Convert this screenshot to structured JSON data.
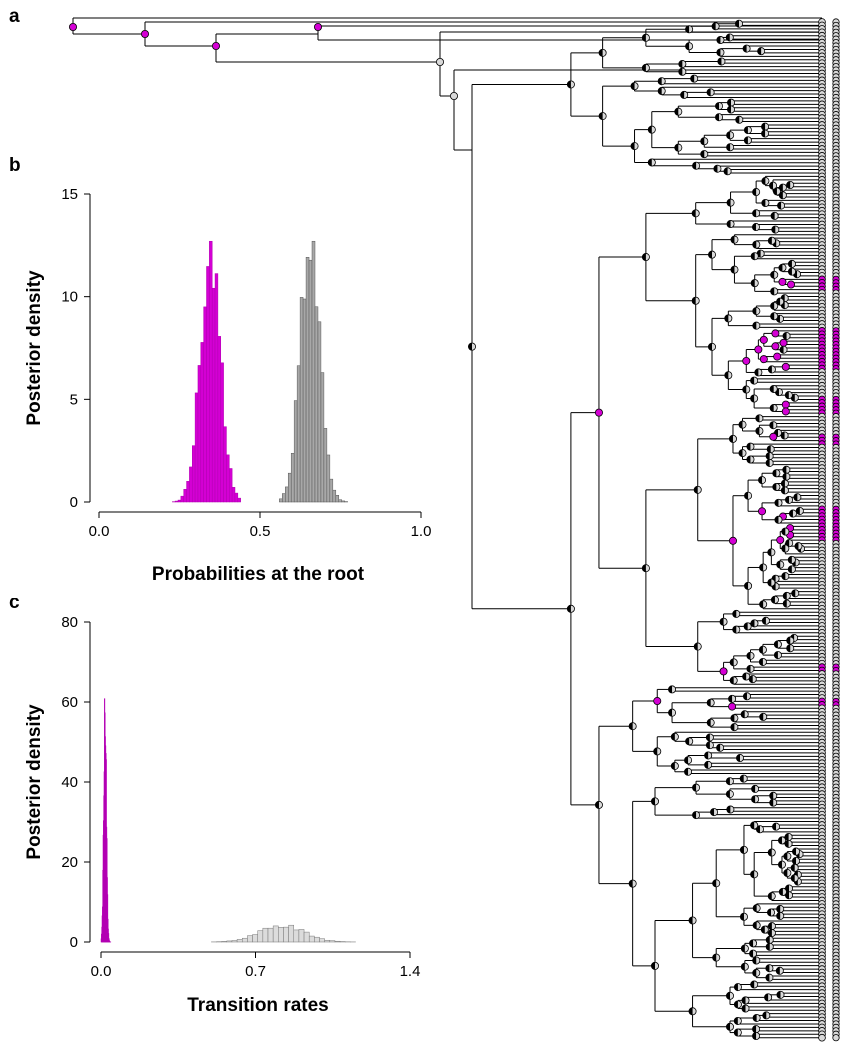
{
  "panel_labels": {
    "a": "a",
    "b": "b",
    "c": "c"
  },
  "colors": {
    "state_a": "#d400d4",
    "state_b": "#a8a8a8",
    "state_b_light": "#dcdcdc",
    "node_fill": "#d9d9d9",
    "branch": "#000000"
  },
  "tree": {
    "type": "phylogeny",
    "node_marker": "pie-chart-circle",
    "note_states": [
      "state_a",
      "state_b"
    ]
  },
  "chart_data": [
    {
      "panel": "b",
      "type": "histogram",
      "xlabel": "Probabilities at the root",
      "ylabel": "Posterior density",
      "xlim": [
        0.0,
        1.0
      ],
      "ylim": [
        0,
        15
      ],
      "xticks": [
        "0.0",
        "0.5",
        "1.0"
      ],
      "yticks": [
        "0",
        "5",
        "10",
        "15"
      ],
      "grid": false,
      "series": [
        {
          "color": "#d400d4",
          "mean": 0.345,
          "sd": 0.031,
          "peak": 12.7,
          "range": [
            0.21,
            0.44
          ]
        },
        {
          "color": "#a8a8a8",
          "mean": 0.655,
          "sd": 0.031,
          "peak": 12.7,
          "range": [
            0.56,
            0.8
          ]
        }
      ]
    },
    {
      "panel": "c",
      "type": "histogram",
      "xlabel": "Transition rates",
      "ylabel": "Posterior density",
      "xlim": [
        0.0,
        1.4
      ],
      "ylim": [
        0,
        80
      ],
      "xticks": [
        "0.0",
        "0.7",
        "1.4"
      ],
      "yticks": [
        "0",
        "20",
        "40",
        "60",
        "80"
      ],
      "grid": false,
      "series": [
        {
          "color": "#d400d4",
          "mean": 0.018,
          "sd": 0.006,
          "peak": 62,
          "range": [
            0.0,
            0.045
          ]
        },
        {
          "color": "#dcdcdc",
          "mean": 0.82,
          "sd": 0.1,
          "peak": 4.2,
          "range": [
            0.5,
            1.2
          ]
        }
      ]
    }
  ]
}
